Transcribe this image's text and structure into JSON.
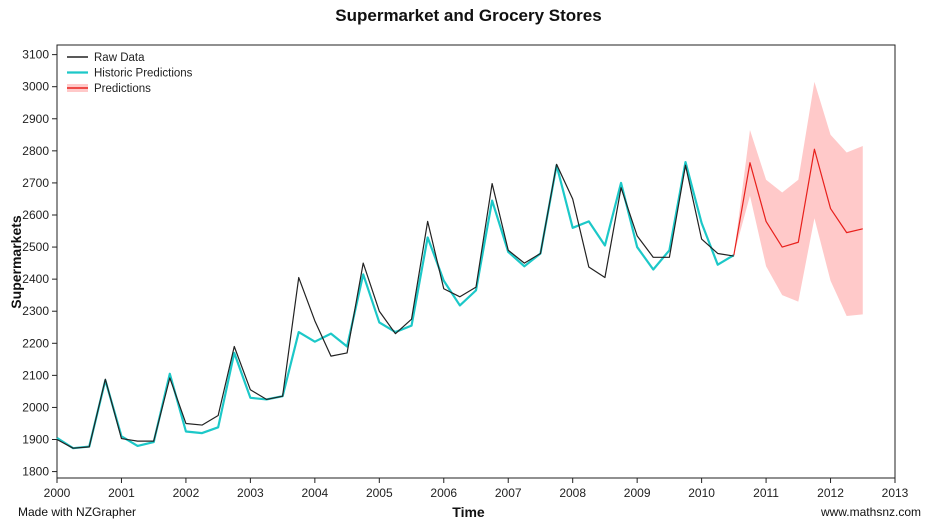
{
  "chart_data": {
    "type": "line",
    "title": "Supermarket and Grocery Stores",
    "xlabel": "Time",
    "ylabel": "Supermarkets",
    "xlim": [
      2000,
      2013
    ],
    "ylim": [
      1780,
      3130
    ],
    "xticks": [
      2000,
      2001,
      2002,
      2003,
      2004,
      2005,
      2006,
      2007,
      2008,
      2009,
      2010,
      2011,
      2012,
      2013
    ],
    "yticks": [
      1800,
      1900,
      2000,
      2100,
      2200,
      2300,
      2400,
      2500,
      2600,
      2700,
      2800,
      2900,
      3000,
      3100
    ],
    "legend_position": "top-left",
    "series": [
      {
        "name": "Raw Data",
        "color": "#222222",
        "x": [
          2000,
          2000.25,
          2000.5,
          2000.75,
          2001,
          2001.25,
          2001.5,
          2001.75,
          2002,
          2002.25,
          2002.5,
          2002.75,
          2003,
          2003.25,
          2003.5,
          2003.75,
          2004,
          2004.25,
          2004.5,
          2004.75,
          2005,
          2005.25,
          2005.5,
          2005.75,
          2006,
          2006.25,
          2006.5,
          2006.75,
          2007,
          2007.25,
          2007.5,
          2007.75,
          2008,
          2008.25,
          2008.5,
          2008.75,
          2009,
          2009.25,
          2009.5,
          2009.75,
          2010,
          2010.25,
          2010.5
        ],
        "y": [
          1900,
          1873,
          1877,
          2088,
          1903,
          1895,
          1895,
          2092,
          1950,
          1945,
          1975,
          2190,
          2055,
          2025,
          2035,
          2405,
          2270,
          2160,
          2170,
          2450,
          2300,
          2230,
          2275,
          2580,
          2370,
          2345,
          2375,
          2698,
          2490,
          2450,
          2480,
          2758,
          2650,
          2438,
          2405,
          2685,
          2535,
          2468,
          2468,
          2755,
          2525,
          2480,
          2472
        ]
      },
      {
        "name": "Historic Predictions",
        "color": "#1cc8c8",
        "x": [
          2000,
          2000.25,
          2000.5,
          2000.75,
          2001,
          2001.25,
          2001.5,
          2001.75,
          2002,
          2002.25,
          2002.5,
          2002.75,
          2003,
          2003.25,
          2003.5,
          2003.75,
          2004,
          2004.25,
          2004.5,
          2004.75,
          2005,
          2005.25,
          2005.5,
          2005.75,
          2006,
          2006.25,
          2006.5,
          2006.75,
          2007,
          2007.25,
          2007.5,
          2007.75,
          2008,
          2008.25,
          2008.5,
          2008.75,
          2009,
          2009.25,
          2009.5,
          2009.75,
          2010,
          2010.25,
          2010.5
        ],
        "y": [
          1905,
          1873,
          1878,
          2085,
          1910,
          1880,
          1892,
          2105,
          1925,
          1920,
          1938,
          2170,
          2030,
          2025,
          2035,
          2235,
          2205,
          2230,
          2190,
          2415,
          2265,
          2235,
          2255,
          2530,
          2395,
          2318,
          2365,
          2645,
          2485,
          2440,
          2480,
          2755,
          2560,
          2580,
          2505,
          2700,
          2500,
          2430,
          2490,
          2765,
          2575,
          2445,
          2475
        ]
      },
      {
        "name": "Predictions",
        "color": "#e8201c",
        "band_color": "#ffc9c9",
        "x": [
          2010.5,
          2010.75,
          2011,
          2011.25,
          2011.5,
          2011.75,
          2012,
          2012.25,
          2012.5
        ],
        "y": [
          2475,
          2763,
          2580,
          2500,
          2515,
          2805,
          2620,
          2545,
          2557
        ],
        "upper": [
          2475,
          2865,
          2710,
          2670,
          2710,
          3015,
          2850,
          2795,
          2815
        ],
        "lower": [
          2475,
          2660,
          2440,
          2350,
          2330,
          2590,
          2395,
          2285,
          2290
        ]
      }
    ]
  },
  "footer": {
    "left": "Made with NZGrapher",
    "right": "www.mathsnz.com"
  }
}
